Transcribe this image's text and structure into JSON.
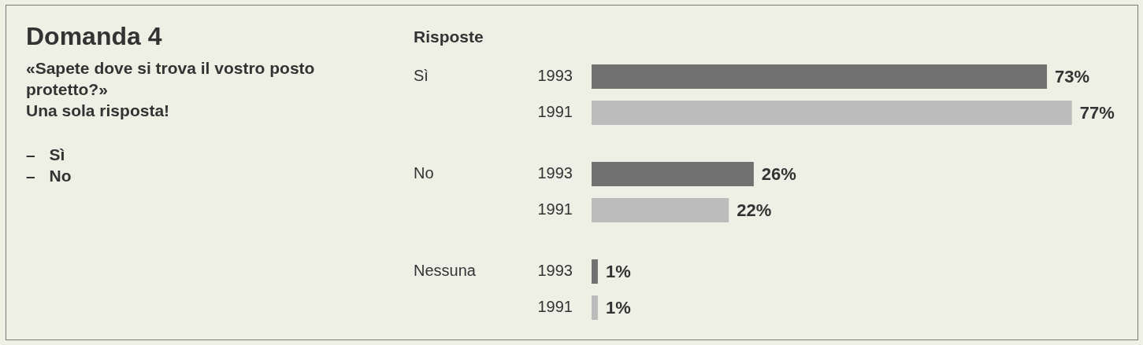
{
  "chart_data": {
    "type": "bar",
    "orientation": "horizontal",
    "title": "Domanda 4",
    "subtitle": "«Sapete dove si trova il vostro posto protetto?»\nUna sola risposta!",
    "ylabel": "Risposte",
    "annotations": [
      "– Sì",
      "– No"
    ],
    "categories": [
      "Sì",
      "No",
      "Nessuna"
    ],
    "series": [
      {
        "name": "1993",
        "color": "#717171",
        "values": [
          73,
          26,
          1
        ],
        "value_labels": [
          "73%",
          "26%",
          "1%"
        ]
      },
      {
        "name": "1991",
        "color": "#bcbcbc",
        "values": [
          77,
          22,
          1
        ],
        "value_labels": [
          "77%",
          "22%",
          "1%"
        ]
      }
    ],
    "tick_labels": "y"
  }
}
